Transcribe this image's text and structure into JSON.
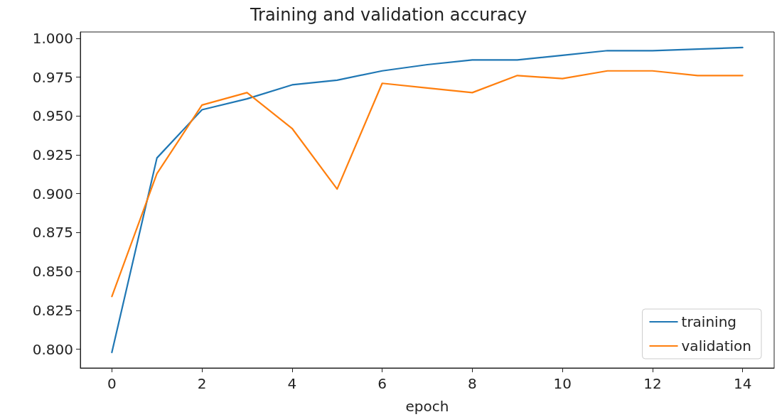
{
  "chart_data": {
    "type": "line",
    "title": "Training and validation accuracy",
    "xlabel": "epoch",
    "x": [
      0,
      1,
      2,
      3,
      4,
      5,
      6,
      7,
      8,
      9,
      10,
      11,
      12,
      13,
      14
    ],
    "series": [
      {
        "name": "training",
        "color": "#1f77b4",
        "values": [
          0.798,
          0.923,
          0.954,
          0.961,
          0.97,
          0.973,
          0.979,
          0.983,
          0.986,
          0.986,
          0.989,
          0.992,
          0.992,
          0.993,
          0.994
        ]
      },
      {
        "name": "validation",
        "color": "#ff7f0e",
        "values": [
          0.834,
          0.913,
          0.957,
          0.965,
          0.942,
          0.903,
          0.971,
          0.968,
          0.965,
          0.976,
          0.974,
          0.979,
          0.979,
          0.976,
          0.976
        ]
      }
    ],
    "xlim": [
      -0.7,
      14.7
    ],
    "xticks": [
      0,
      2,
      4,
      6,
      8,
      10,
      12,
      14
    ],
    "ylim": [
      0.788,
      1.004
    ],
    "yticks": [
      {
        "value": 0.8,
        "label": "0.800"
      },
      {
        "value": 0.825,
        "label": "0.825"
      },
      {
        "value": 0.85,
        "label": "0.850"
      },
      {
        "value": 0.875,
        "label": "0.875"
      },
      {
        "value": 0.9,
        "label": "0.900"
      },
      {
        "value": 0.925,
        "label": "0.925"
      },
      {
        "value": 0.95,
        "label": "0.950"
      },
      {
        "value": 0.975,
        "label": "0.975"
      },
      {
        "value": 1.0,
        "label": "1.000"
      }
    ],
    "grid": false,
    "legend": "bottom right",
    "marker": "none",
    "line_style": "solid"
  }
}
